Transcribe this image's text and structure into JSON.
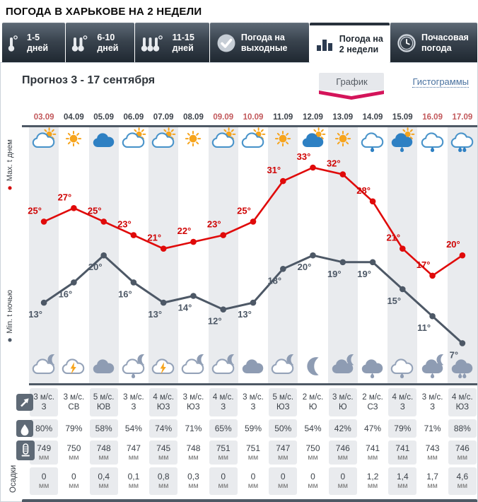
{
  "title": "ПОГОДА В ХАРЬКОВЕ НА 2 НЕДЕЛИ",
  "tabs": [
    {
      "name": "tab-1-5-days",
      "icon": "thermometer-1",
      "lines": [
        "1-5",
        "дней"
      ],
      "active": false
    },
    {
      "name": "tab-6-10-days",
      "icon": "thermometer-2",
      "lines": [
        "6-10",
        "дней"
      ],
      "active": false
    },
    {
      "name": "tab-11-15-days",
      "icon": "thermometer-3",
      "lines": [
        "11-15",
        "дней"
      ],
      "active": false
    },
    {
      "name": "tab-weekend",
      "icon": "check",
      "lines": [
        "Погода на",
        "выходные"
      ],
      "active": false
    },
    {
      "name": "tab-two-weeks",
      "icon": "bar-chart",
      "lines": [
        "Погода на",
        "2 недели"
      ],
      "active": true
    },
    {
      "name": "tab-hourly",
      "icon": "clock",
      "lines": [
        "Почасовая",
        "погода"
      ],
      "active": false
    }
  ],
  "subheader": {
    "forecast_title": "Прогноз 3 - 17 сентября",
    "view_graph": "График",
    "view_histogram": "Гистограммы"
  },
  "axis": {
    "day_label": "Max. t днем",
    "night_label": "Min. t ночью"
  },
  "columns": {
    "dates": [
      "03.09",
      "04.09",
      "05.09",
      "06.09",
      "07.09",
      "08.09",
      "09.09",
      "10.09",
      "11.09",
      "12.09",
      "13.09",
      "14.09",
      "15.09",
      "16.09",
      "17.09"
    ],
    "weekend": [
      true,
      false,
      false,
      false,
      false,
      false,
      true,
      true,
      false,
      false,
      false,
      false,
      false,
      true,
      true
    ],
    "day_icons": [
      "cloud-sun",
      "sun",
      "cloud-fill",
      "cloud-sun",
      "cloud-sun",
      "sun",
      "cloud-sun",
      "cloud-sun",
      "sun",
      "cloud-fill-sun",
      "sun",
      "cloud-rain1",
      "cloud-fill-sun-rain1",
      "cloud-rain1",
      "cloud-rain2"
    ],
    "night_icons": [
      "cloud-moon",
      "cloud-bolt",
      "cloud-fill",
      "cloud-moon-rain1",
      "cloud-bolt",
      "cloud-moon",
      "cloud-moon",
      "cloud-fill",
      "cloud-moon",
      "moon",
      "cloud-fill-moon",
      "cloud-fill-rain1",
      "cloud-rain1",
      "cloud-fill-moon-rain1",
      "cloud-fill-rain2"
    ]
  },
  "rows": {
    "wind": {
      "icon": "wind-direction-icon",
      "speeds": [
        "3 м/с.",
        "3 м/с.",
        "5 м/с.",
        "3 м/с.",
        "4 м/с.",
        "3 м/с.",
        "4 м/с.",
        "3 м/с.",
        "5 м/с.",
        "2 м/с.",
        "3 м/с.",
        "2 м/с.",
        "4 м/с.",
        "3 м/с.",
        "4 м/с."
      ],
      "directions": [
        "З",
        "СВ",
        "ЮВ",
        "З",
        "ЮЗ",
        "ЮЗ",
        "З",
        "З",
        "ЮЗ",
        "Ю",
        "Ю",
        "СЗ",
        "З",
        "З",
        "ЮЗ"
      ]
    },
    "humidity": {
      "icon": "humidity-icon",
      "values": [
        "80%",
        "79%",
        "58%",
        "54%",
        "74%",
        "71%",
        "65%",
        "59%",
        "50%",
        "54%",
        "42%",
        "47%",
        "79%",
        "71%",
        "88%"
      ]
    },
    "pressure": {
      "icon": "pressure-icon",
      "values": [
        "749",
        "750",
        "748",
        "747",
        "745",
        "748",
        "751",
        "751",
        "747",
        "750",
        "746",
        "741",
        "741",
        "743",
        "746"
      ],
      "unit": "мм"
    },
    "precipitation": {
      "label": "Осадки",
      "values": [
        "0",
        "0",
        "0,4",
        "0,1",
        "0,8",
        "0,3",
        "0",
        "0",
        "0",
        "0",
        "0",
        "1,2",
        "1,4",
        "1,7",
        "4,6"
      ],
      "unit": "мм"
    }
  },
  "colors": {
    "day_line": "#e00a0a",
    "day_label": "#cf0404",
    "night_line": "#4d5866",
    "weekend_date": "#c2595c",
    "accent_pink": "#d4145a",
    "link_blue": "#4a72a0",
    "stripe": "#e9ebee",
    "bar_dark": "#4e5965"
  },
  "chart_data": {
    "type": "line",
    "categories": [
      "03.09",
      "04.09",
      "05.09",
      "06.09",
      "07.09",
      "08.09",
      "09.09",
      "10.09",
      "11.09",
      "12.09",
      "13.09",
      "14.09",
      "15.09",
      "16.09",
      "17.09"
    ],
    "series": [
      {
        "name": "Max. t днем",
        "color": "#e00a0a",
        "values": [
          25,
          27,
          25,
          23,
          21,
          22,
          23,
          25,
          31,
          33,
          32,
          28,
          21,
          17,
          20
        ]
      },
      {
        "name": "Min. t ночью",
        "color": "#4d5866",
        "values": [
          13,
          16,
          20,
          16,
          13,
          14,
          12,
          13,
          18,
          20,
          19,
          19,
          15,
          11,
          7
        ]
      }
    ],
    "unit": "°",
    "ylim": [
      5,
      35
    ],
    "legend_position": "left-vertical",
    "grid": "vertical-stripes"
  }
}
